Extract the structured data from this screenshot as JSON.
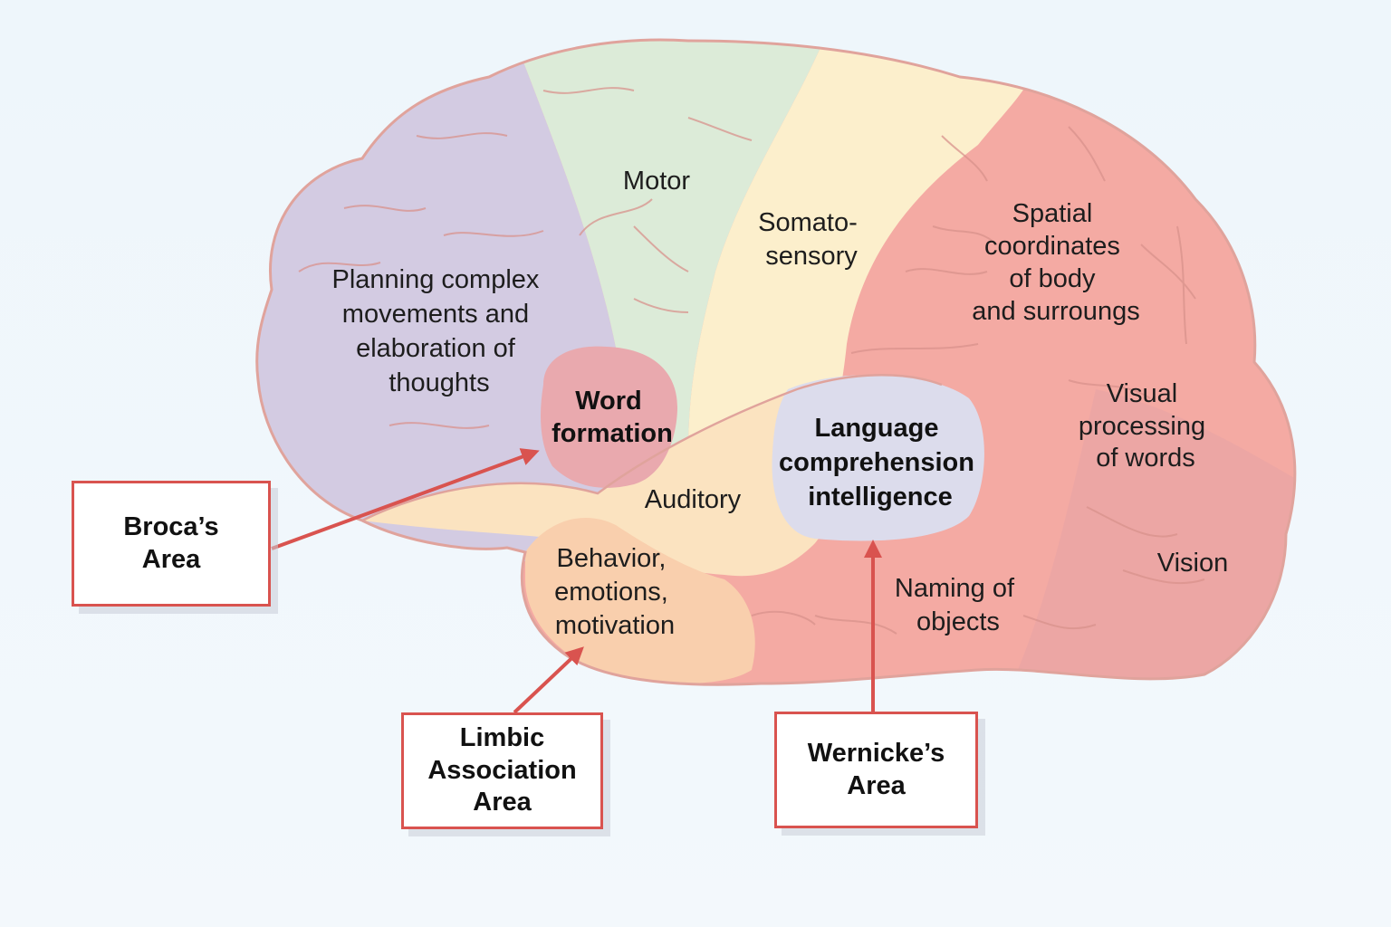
{
  "regions": {
    "motor": [
      "Motor"
    ],
    "somatosensory": [
      "Somato-",
      "sensory"
    ],
    "planning": [
      "Planning complex",
      "movements and",
      "elaboration of",
      "thoughts"
    ],
    "word_formation": [
      "Word",
      "formation"
    ],
    "auditory": [
      "Auditory"
    ],
    "language": [
      "Language",
      "comprehension",
      "intelligence"
    ],
    "spatial": [
      "Spatial",
      "coordinates",
      "of body",
      "and surroungs"
    ],
    "visual_processing": [
      "Visual",
      "processing",
      "of words"
    ],
    "vision": [
      "Vision"
    ],
    "behavior": [
      "Behavior,",
      "emotions,",
      "motivation"
    ],
    "naming": [
      "Naming of",
      "objects"
    ]
  },
  "callouts": {
    "broca": "Broca’s\nArea",
    "limbic": "Limbic\nAssociation\nArea",
    "wernicke": "Wernicke’s\nArea"
  },
  "colors": {
    "frontal": "#d3cbe2",
    "motor": "#dcebd8",
    "somatosensory": "#fcefcc",
    "parietal_occipital": "#f4aaa3",
    "word_formation": "#e9a9ae",
    "temporal": "#fbe3c0",
    "limbic": "#f9cfad",
    "wernicke": "#dcdcec",
    "outline": "#e0a39c",
    "arrow": "#d9534f"
  }
}
